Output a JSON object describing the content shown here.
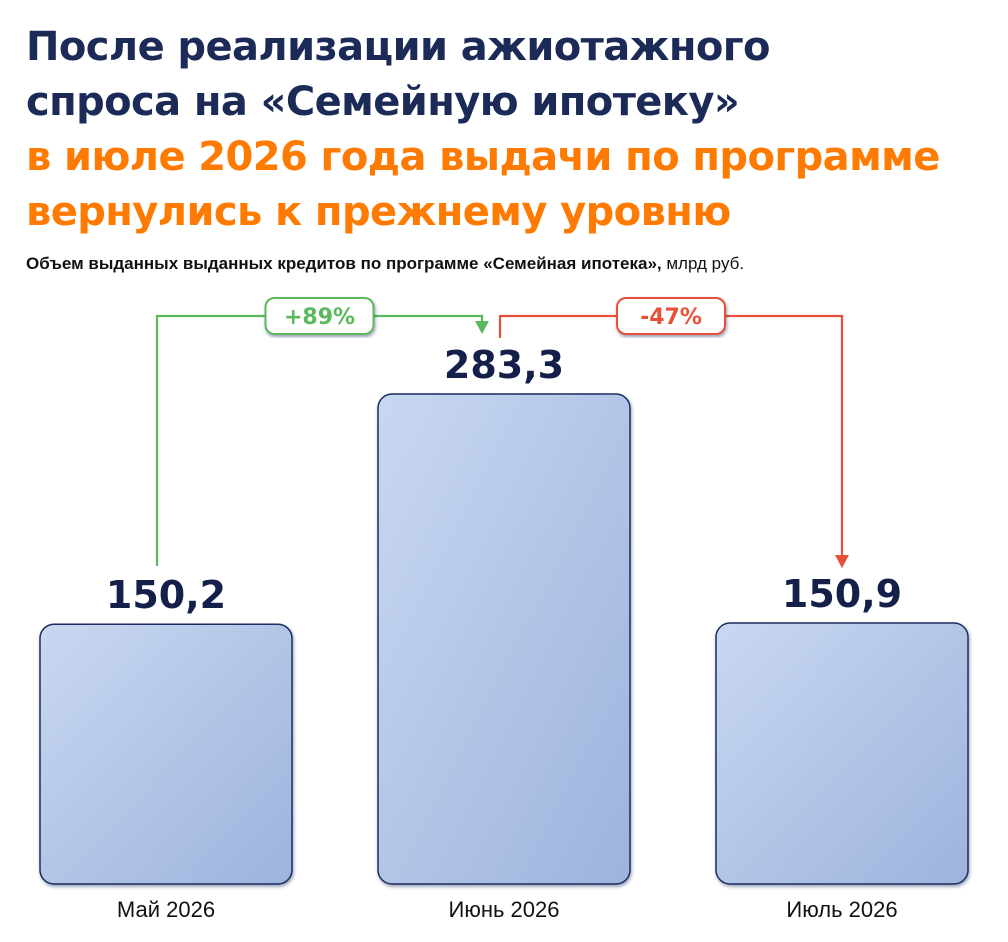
{
  "title": {
    "line1": "После реализации ажиотажного",
    "line2": "спроса на «Семейную ипотеку»",
    "line3": "в июле 2026 года выдачи по программе",
    "line4": "вернулись к прежнему уровню"
  },
  "subtitle": {
    "bold": "Объем выданных выданных кредитов по программе «Семейная ипотека»,",
    "unit": " млрд руб."
  },
  "colors": {
    "title_dark": "#1b2a57",
    "title_accent": "#ff7a00",
    "bar_fill_start": "#c9d8f1",
    "bar_fill_end": "#9db3dd",
    "bar_border": "#1c2d5e",
    "increase": "#5cb85c",
    "decrease": "#e8503a"
  },
  "chart_data": {
    "type": "bar",
    "categories": [
      "Май 2026",
      "Июнь 2026",
      "Июль 2026"
    ],
    "values": [
      150.2,
      283.3,
      150.9
    ],
    "value_labels": [
      "150,2",
      "283,3",
      "150,9"
    ],
    "ylim": [
      0,
      283.3
    ],
    "grid": false,
    "annotations": [
      {
        "from": 0,
        "to": 1,
        "text": "+89%",
        "kind": "increase"
      },
      {
        "from": 1,
        "to": 2,
        "text": "-47%",
        "kind": "decrease"
      }
    ]
  }
}
